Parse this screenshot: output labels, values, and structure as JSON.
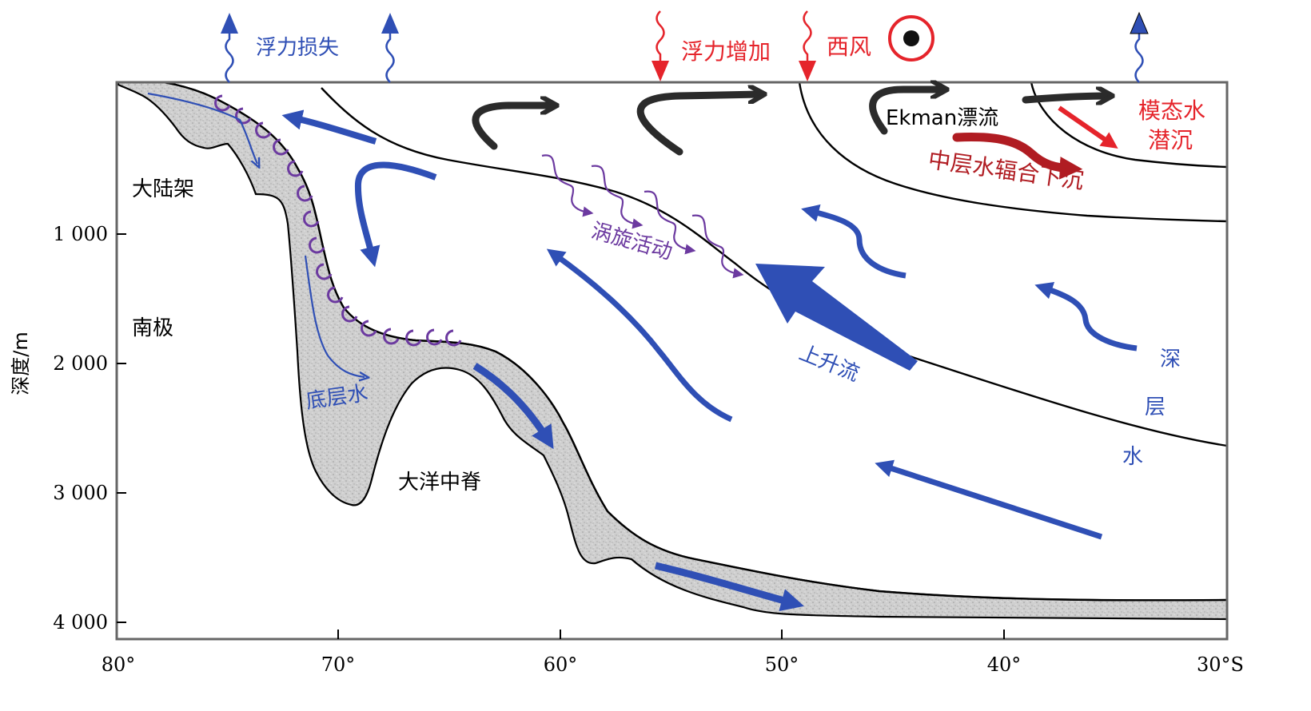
{
  "axes": {
    "y_title": "深度/m",
    "y_ticks": [
      "1 000",
      "2 000",
      "3 000",
      "4 000"
    ],
    "x_ticks": [
      "80°",
      "70°",
      "60°",
      "50°",
      "40°",
      "30°S"
    ]
  },
  "regions": {
    "shelf": "大陆架",
    "antarctica": "南极",
    "ridge": "大洋中脊"
  },
  "labels": {
    "buoyancy_loss": "浮力损失",
    "buoyancy_gain": "浮力增加",
    "westerly": "西风",
    "ekman": "Ekman漂流",
    "mode_water": [
      "模态水",
      "潜沉"
    ],
    "intermediate_water": "中层水辐合下沉",
    "eddy_activity": "涡旋活动",
    "upwelling": "上升流",
    "bottom_water": "底层水",
    "deep_water": [
      "深",
      "层",
      "水"
    ]
  },
  "colors": {
    "blue": "#2f4fb5",
    "red": "#e5242b",
    "dark_red": "#b01c22",
    "purple": "#6c3aa0",
    "black_arrow": "#2b2b2b",
    "seafloor_fill": "#c9c9c9"
  }
}
